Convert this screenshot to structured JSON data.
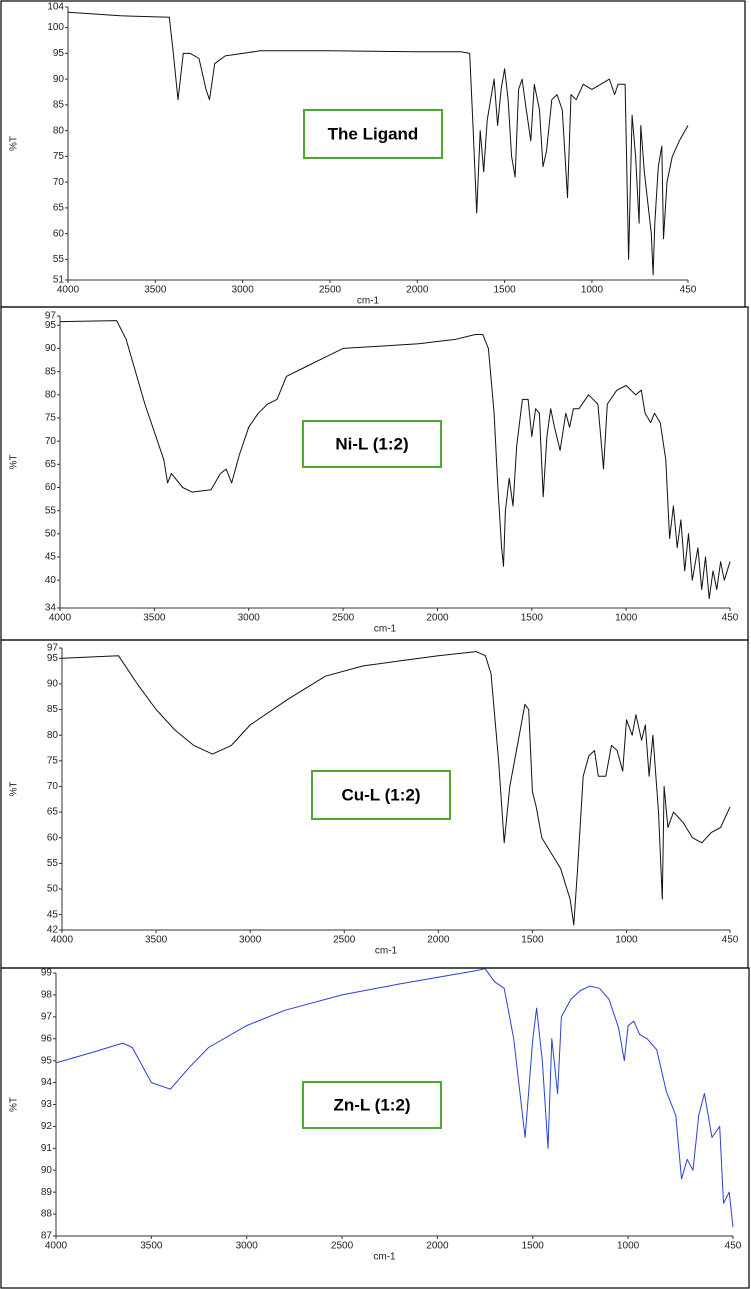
{
  "chart_data": [
    {
      "type": "line",
      "annotation": "The Ligand",
      "xlabel": "cm-1",
      "ylabel": "%T",
      "color": "#111111",
      "xlim": [
        4000,
        450
      ],
      "ylim": [
        51,
        104
      ],
      "xticks": [
        4000,
        3500,
        3000,
        2500,
        2000,
        1500,
        1000,
        450
      ],
      "yticks": [
        51,
        55,
        60,
        65,
        70,
        75,
        80,
        85,
        90,
        95,
        100,
        104
      ],
      "x": [
        4000,
        3700,
        3420,
        3400,
        3370,
        3340,
        3300,
        3250,
        3210,
        3190,
        3160,
        3100,
        3000,
        2900,
        2500,
        2000,
        1750,
        1700,
        1680,
        1660,
        1640,
        1620,
        1600,
        1580,
        1560,
        1540,
        1520,
        1500,
        1480,
        1460,
        1440,
        1420,
        1400,
        1380,
        1350,
        1330,
        1300,
        1280,
        1260,
        1230,
        1200,
        1170,
        1140,
        1120,
        1090,
        1050,
        1000,
        950,
        900,
        870,
        850,
        810,
        790,
        770,
        750,
        730,
        720,
        700,
        680,
        660,
        650,
        640,
        620,
        600,
        590,
        570,
        540,
        500,
        450
      ],
      "values": [
        103,
        102.3,
        102,
        96,
        86,
        95,
        95,
        94,
        88,
        86,
        93,
        94.5,
        95,
        95.5,
        95.5,
        95.3,
        95.3,
        95,
        80,
        64,
        80,
        72,
        82,
        86,
        90,
        81,
        88,
        92,
        86,
        75,
        71,
        88,
        90,
        85,
        78,
        89,
        84,
        73,
        76,
        86,
        87,
        84,
        67,
        87,
        86,
        89,
        88,
        89,
        90,
        87,
        89,
        89,
        55,
        83,
        75,
        62,
        81,
        72,
        66,
        60,
        52,
        62,
        73,
        77,
        59,
        70,
        75,
        78,
        81
      ]
    },
    {
      "type": "line",
      "annotation": "Ni-L (1:2)",
      "xlabel": "cm-1",
      "ylabel": "%T",
      "color": "#111111",
      "xlim": [
        4000,
        450
      ],
      "ylim": [
        34,
        97
      ],
      "xticks": [
        4000,
        3500,
        3000,
        2500,
        2000,
        1500,
        1000,
        450
      ],
      "yticks": [
        34,
        40,
        45,
        50,
        55,
        60,
        65,
        70,
        75,
        80,
        85,
        90,
        95,
        97
      ],
      "x": [
        4000,
        3700,
        3650,
        3550,
        3450,
        3430,
        3410,
        3350,
        3300,
        3200,
        3150,
        3120,
        3090,
        3050,
        3000,
        2950,
        2900,
        2850,
        2800,
        2700,
        2600,
        2500,
        2300,
        2100,
        1900,
        1800,
        1760,
        1730,
        1700,
        1680,
        1660,
        1650,
        1640,
        1620,
        1600,
        1580,
        1550,
        1520,
        1500,
        1480,
        1460,
        1440,
        1420,
        1400,
        1380,
        1350,
        1320,
        1300,
        1280,
        1250,
        1200,
        1150,
        1120,
        1100,
        1050,
        1000,
        950,
        920,
        900,
        870,
        850,
        820,
        790,
        770,
        750,
        730,
        710,
        690,
        670,
        650,
        620,
        600,
        580,
        560,
        540,
        520,
        500,
        480,
        450
      ],
      "values": [
        95.8,
        96,
        92,
        78,
        66,
        61,
        63,
        60,
        59,
        59.5,
        63,
        64,
        61,
        67,
        73,
        76,
        78,
        79,
        84,
        86,
        88,
        90,
        90.5,
        91,
        92,
        93,
        93,
        90,
        76,
        60,
        47,
        43,
        55,
        62,
        56,
        69,
        79,
        79,
        71,
        77,
        76,
        58,
        71,
        77,
        73,
        68,
        76,
        73,
        77,
        77,
        80,
        78,
        64,
        78,
        81,
        82,
        80,
        81,
        76,
        74,
        76,
        74,
        66,
        49,
        56,
        47,
        53,
        42,
        50,
        40,
        47,
        38,
        45,
        36,
        42,
        38,
        44,
        40,
        44
      ]
    },
    {
      "type": "line",
      "annotation": "Cu-L (1:2)",
      "xlabel": "cm-1",
      "ylabel": "%T",
      "color": "#111111",
      "xlim": [
        4000,
        450
      ],
      "ylim": [
        42,
        97
      ],
      "xticks": [
        4000,
        3500,
        3000,
        2500,
        2000,
        1500,
        1000,
        450
      ],
      "yticks": [
        42,
        45,
        50,
        55,
        60,
        65,
        70,
        75,
        80,
        85,
        90,
        95,
        97
      ],
      "x": [
        4000,
        3700,
        3600,
        3500,
        3400,
        3300,
        3200,
        3100,
        3000,
        2800,
        2600,
        2400,
        2200,
        2000,
        1800,
        1750,
        1720,
        1680,
        1650,
        1620,
        1580,
        1540,
        1520,
        1500,
        1480,
        1450,
        1400,
        1350,
        1300,
        1280,
        1260,
        1230,
        1200,
        1170,
        1150,
        1110,
        1080,
        1050,
        1020,
        1000,
        970,
        950,
        920,
        900,
        880,
        860,
        830,
        810,
        800,
        780,
        750,
        700,
        650,
        600,
        550,
        500,
        450
      ],
      "values": [
        95,
        95.5,
        90,
        85,
        81,
        78,
        76.3,
        78,
        82,
        87,
        91.5,
        93.5,
        94.5,
        95.5,
        96.3,
        95.5,
        92,
        75,
        59,
        70,
        78,
        86,
        85,
        69,
        66,
        60,
        57,
        54,
        48,
        43,
        54,
        72,
        76,
        77,
        72,
        72,
        78,
        77,
        73,
        83,
        80,
        84,
        79,
        82,
        72,
        80,
        65,
        48,
        70,
        62,
        65,
        63,
        60,
        59,
        61,
        62,
        66
      ]
    },
    {
      "type": "line",
      "annotation": "Zn-L (1:2)",
      "xlabel": "cm-1",
      "ylabel": "%T",
      "color": "#2b3fd6",
      "xlim": [
        4000,
        450
      ],
      "ylim": [
        87,
        99
      ],
      "xticks": [
        4000,
        3500,
        3000,
        2500,
        2000,
        1500,
        1000,
        450
      ],
      "yticks": [
        87,
        88,
        89,
        90,
        91,
        92,
        93,
        94,
        95,
        96,
        97,
        98,
        99
      ],
      "x": [
        4000,
        3800,
        3650,
        3600,
        3550,
        3500,
        3400,
        3300,
        3200,
        3000,
        2800,
        2500,
        2200,
        2000,
        1800,
        1750,
        1700,
        1650,
        1600,
        1560,
        1540,
        1500,
        1480,
        1450,
        1420,
        1400,
        1370,
        1350,
        1300,
        1250,
        1200,
        1150,
        1100,
        1050,
        1020,
        1000,
        970,
        940,
        900,
        850,
        800,
        750,
        720,
        690,
        660,
        630,
        600,
        560,
        520,
        500,
        470,
        450
      ],
      "values": [
        94.9,
        95.4,
        95.8,
        95.6,
        94.8,
        94,
        93.7,
        94.7,
        95.6,
        96.6,
        97.3,
        98,
        98.5,
        98.8,
        99.1,
        99.2,
        98.6,
        98.3,
        96,
        93,
        91.5,
        96,
        97.4,
        95,
        91,
        96,
        93.5,
        97,
        97.8,
        98.2,
        98.4,
        98.3,
        97.8,
        96.5,
        95,
        96.6,
        96.8,
        96.2,
        96,
        95.5,
        93.6,
        92.5,
        89.6,
        90.5,
        90,
        92.5,
        93.5,
        91.5,
        92,
        88.5,
        89,
        87.4
      ]
    }
  ]
}
